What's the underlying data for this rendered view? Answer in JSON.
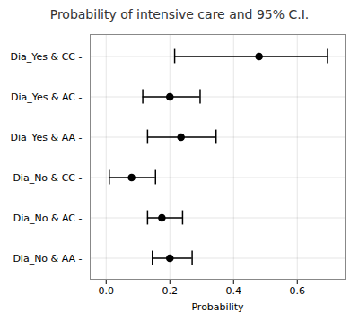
{
  "chart_data": {
    "type": "errorbar",
    "title": "Probability of intensive care and 95% C.I.",
    "xlabel": "Probability",
    "categories": [
      "Dia_No & AA -",
      "Dia_No & AC -",
      "Dia_No & CC -",
      "Dia_Yes & AA -",
      "Dia_Yes & AC -",
      "Dia_Yes & CC -"
    ],
    "values": [
      0.2,
      0.175,
      0.08,
      0.235,
      0.2,
      0.48
    ],
    "ci_low": [
      0.145,
      0.13,
      0.01,
      0.13,
      0.115,
      0.215
    ],
    "ci_high": [
      0.27,
      0.24,
      0.155,
      0.345,
      0.295,
      0.695
    ],
    "xlim": [
      -0.05,
      0.75
    ],
    "xticks": [
      {
        "value": 0,
        "label": "0.0"
      },
      0.2,
      0.4,
      0.6
    ],
    "color": "black",
    "grid": true
  }
}
